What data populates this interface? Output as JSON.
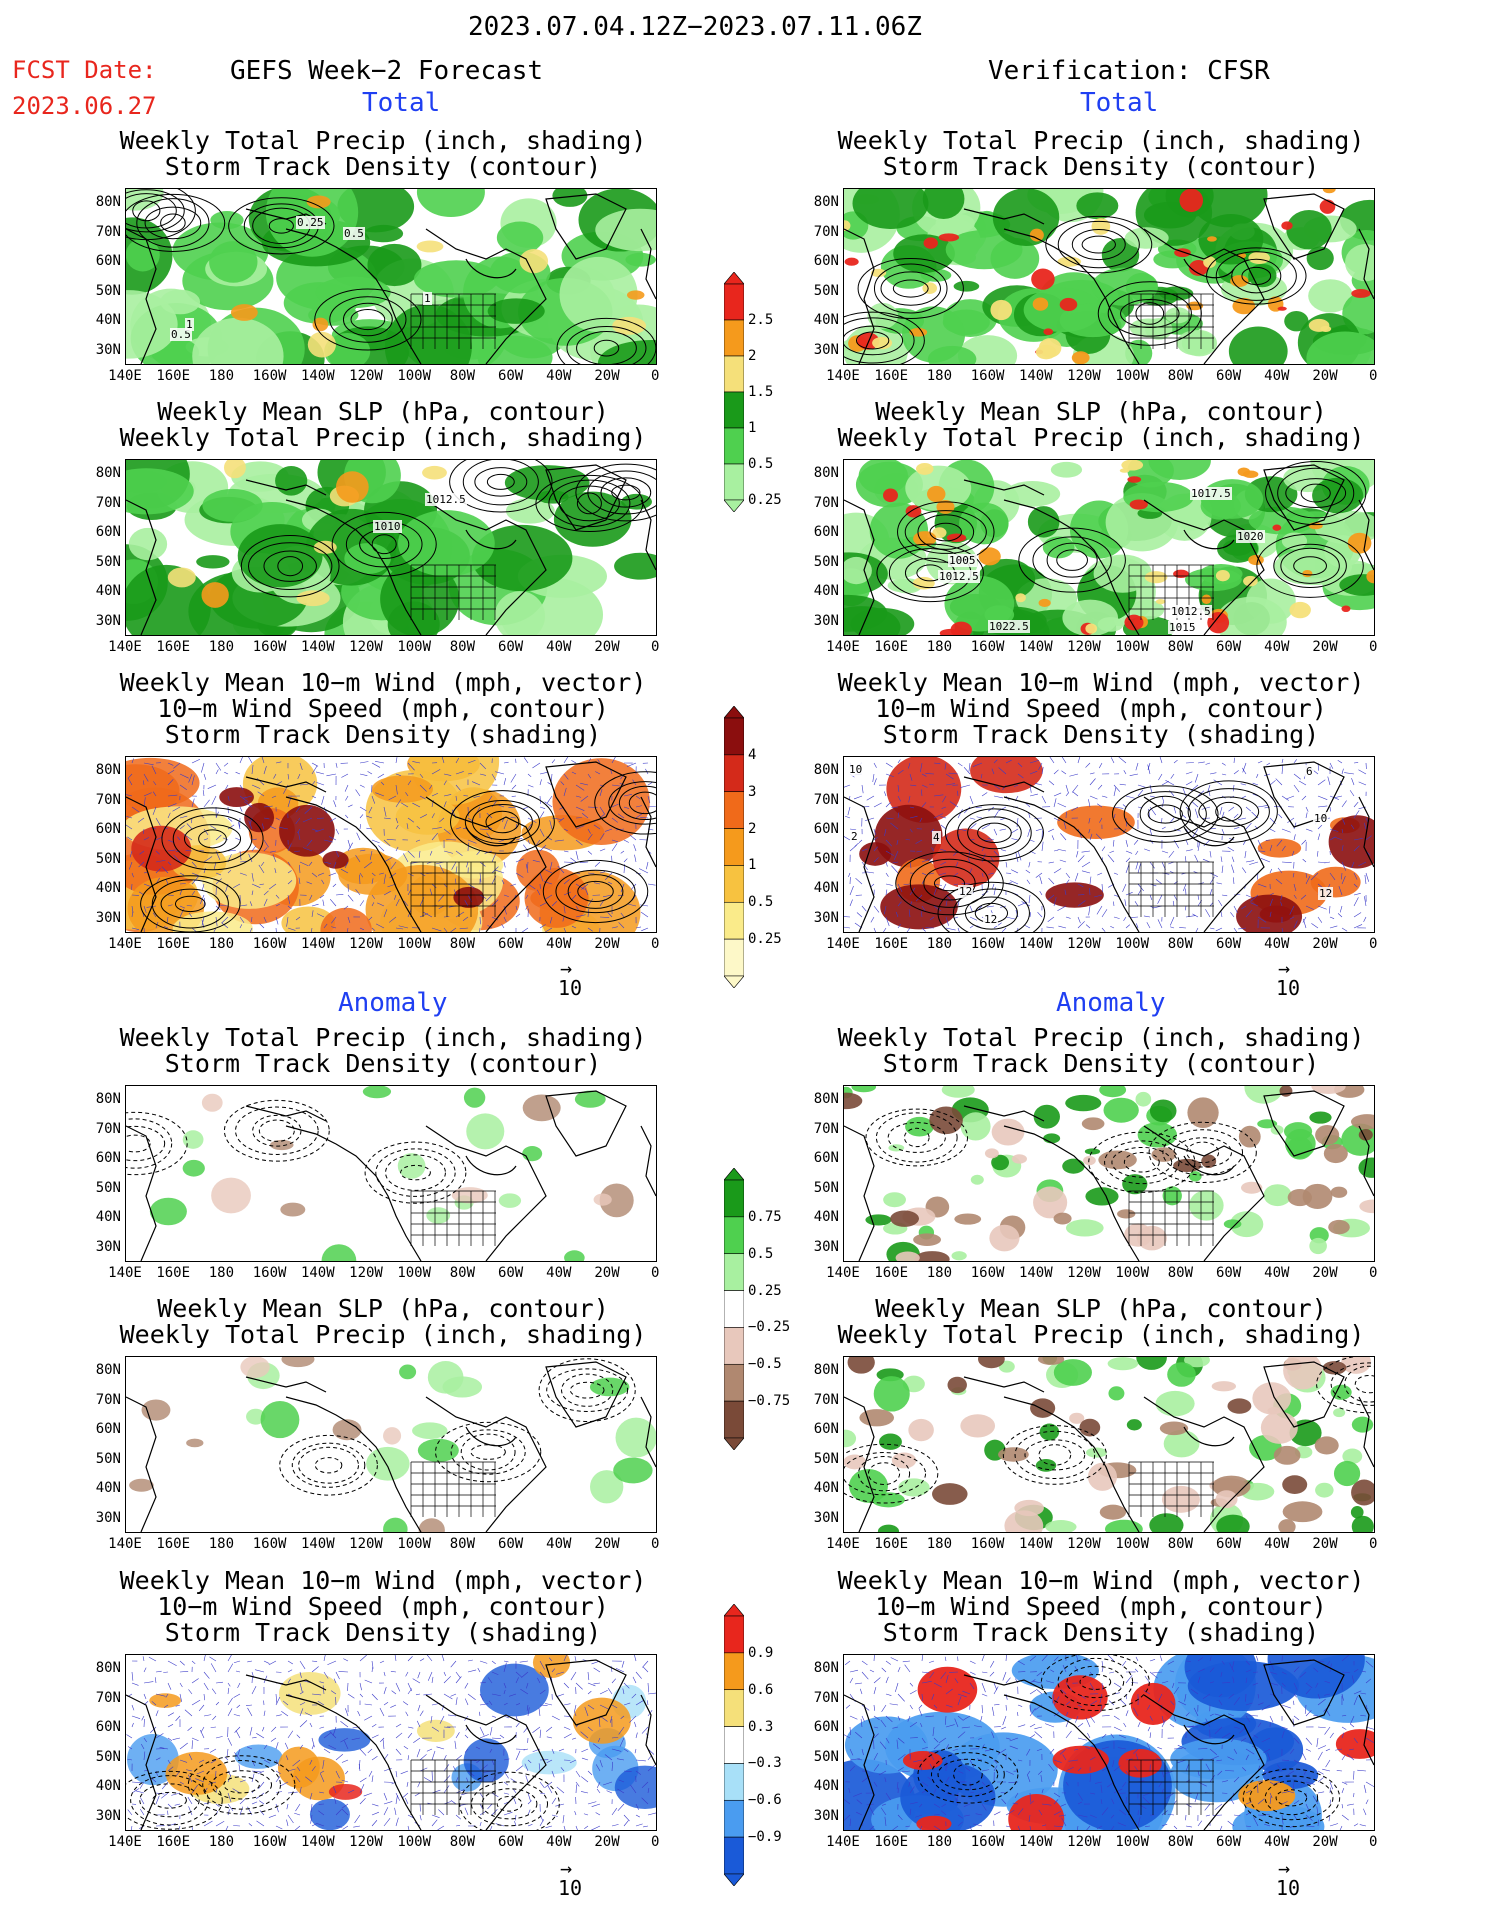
{
  "header": {
    "date_range": "2023.07.04.12Z−2023.07.11.06Z",
    "fcst_label": "FCST Date:",
    "fcst_date": "2023.06.27",
    "left_title": "GEFS Week−2 Forecast",
    "right_title": "Verification: CFSR"
  },
  "sections": {
    "total": "Total",
    "anomaly": "Anomaly"
  },
  "panel_titles": {
    "precip_storm": [
      "Weekly Total Precip (inch, shading)",
      "Storm Track Density (contour)"
    ],
    "slp_precip": [
      "Weekly Mean SLP (hPa, contour)",
      "Weekly Total Precip (inch, shading)"
    ],
    "wind_storm": [
      "Weekly Mean 10−m Wind (mph, vector)",
      "10−m Wind Speed (mph, contour)",
      "Storm Track Density (shading)"
    ]
  },
  "axes": {
    "lat_labels": [
      "80N",
      "70N",
      "60N",
      "50N",
      "40N",
      "30N"
    ],
    "lon_labels": [
      "140E",
      "160E",
      "180",
      "160W",
      "140W",
      "120W",
      "100W",
      "80W",
      "60W",
      "40W",
      "20W",
      "0"
    ]
  },
  "vector_scale": "10",
  "colorbars": {
    "precip_total": {
      "labels": [
        "2.5",
        "2",
        "1.5",
        "1",
        "0.5",
        "0.25"
      ],
      "colors": [
        "#e8261d",
        "#f59a1c",
        "#f5e07a",
        "#1a9a1a",
        "#4fd04f",
        "#a8f0a0"
      ]
    },
    "storm_total": {
      "labels": [
        "4",
        "3",
        "2",
        "1",
        "0.5",
        "0.25"
      ],
      "colors": [
        "#8b0e0e",
        "#d42a1a",
        "#f06a1a",
        "#f59a1c",
        "#f7c240",
        "#faeb8a",
        "#fdf8c8"
      ]
    },
    "precip_anom": {
      "labels": [
        "0.75",
        "0.5",
        "0.25",
        "−0.25",
        "−0.5",
        "−0.75"
      ],
      "colors": [
        "#1a9a1a",
        "#4fd04f",
        "#a8f0a0",
        "#ffffff",
        "#e8c8bc",
        "#b08870",
        "#7a4a38"
      ]
    },
    "storm_anom": {
      "labels": [
        "0.9",
        "0.6",
        "0.3",
        "−0.3",
        "−0.6",
        "−0.9"
      ],
      "colors": [
        "#e8261d",
        "#f59a1c",
        "#f5e07a",
        "#ffffff",
        "#a8e0f8",
        "#4a9cf0",
        "#1a5ad8"
      ]
    }
  },
  "contour_labels": {
    "slp_left": [
      "1012.5",
      "1010"
    ],
    "slp_right": [
      "1017.5",
      "1020",
      "1005",
      "1012.5",
      "1022.5",
      "1012.5",
      "1015"
    ],
    "storm_left": [
      "0.25",
      "0.5",
      "1",
      "0.5",
      "1"
    ],
    "wind_right": [
      "10",
      "2",
      "4",
      "12",
      "12",
      "10",
      "12",
      "6"
    ]
  },
  "colors": {
    "fcst_red": "#e8261d",
    "section_blue": "#1f3ff2"
  }
}
